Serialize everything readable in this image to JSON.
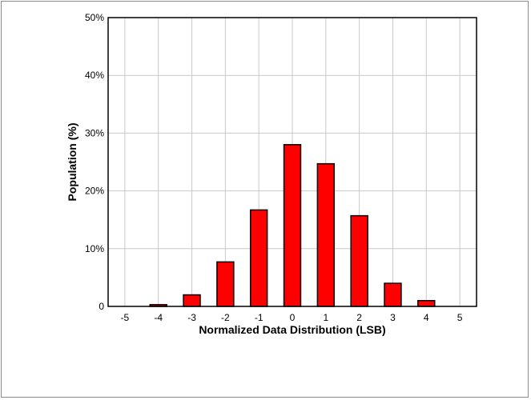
{
  "chart_data": {
    "type": "bar",
    "categories": [
      "-5",
      "-4",
      "-3",
      "-2",
      "-1",
      "0",
      "1",
      "2",
      "3",
      "4",
      "5"
    ],
    "x": [
      -5,
      -4,
      -3,
      -2,
      -1,
      0,
      1,
      2,
      3,
      4,
      5
    ],
    "values": [
      0,
      0.3,
      2.0,
      7.7,
      16.7,
      28.0,
      24.7,
      15.7,
      4.0,
      1.0,
      0
    ],
    "xlabel": "Normalized Data Distribution (LSB)",
    "ylabel": "Population (%)",
    "ylim": [
      0,
      50
    ],
    "xlim": [
      -5.5,
      5.5
    ],
    "yticks": [
      {
        "value": 0,
        "label": "0"
      },
      {
        "value": 10,
        "label": "10%"
      },
      {
        "value": 20,
        "label": "20%"
      },
      {
        "value": 30,
        "label": "30%"
      },
      {
        "value": 40,
        "label": "40%"
      },
      {
        "value": 50,
        "label": "50%"
      }
    ],
    "grid": true,
    "bar_color": "#ff0000",
    "bar_edge_color": "#000000",
    "grid_color": "#c8c8c8"
  }
}
